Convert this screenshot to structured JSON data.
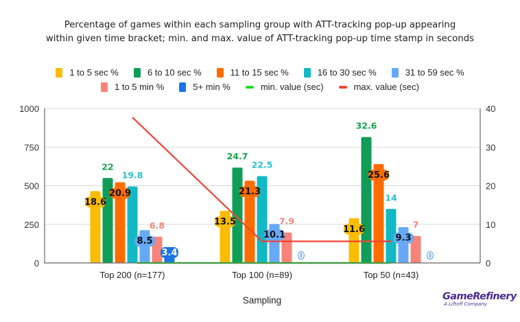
{
  "chart_data": {
    "type": "bar",
    "title_lines": [
      "Percentage of games within each sampling group with ATT-tracking pop-up appearing",
      "within given time bracket; min. and max. value of ATT-tracking pop-up time stamp in seconds"
    ],
    "xlabel": "Sampling",
    "ylabel": "",
    "categories": [
      "Top 200 (n=177)",
      "Top 100 (n=89)",
      "Top 50 (n=43)"
    ],
    "left_axis": {
      "ylim": [
        0,
        1000
      ],
      "ticks": [
        "0",
        "250",
        "500",
        "750",
        "1000"
      ],
      "tick_values": [
        0,
        250,
        500,
        750,
        1000
      ]
    },
    "right_axis": {
      "ylim": [
        0,
        40
      ],
      "ticks": [
        "0",
        "10",
        "20",
        "30",
        "40"
      ],
      "tick_values": [
        0,
        10,
        20,
        30,
        40
      ]
    },
    "bar_scale_note": "bars plotted on left axis at percent x 25",
    "grid": true,
    "legend_position": "top",
    "series": [
      {
        "name": "1 to 5 sec %",
        "color": "#fbbc04",
        "label_color": "#111111",
        "label_style": "inside-badge",
        "values": [
          18.6,
          13.5,
          11.6
        ]
      },
      {
        "name": "6 to 10 sec %",
        "color": "#0f9d58",
        "label_color": "#16a34a",
        "label_style": "above",
        "values": [
          22,
          24.7,
          32.6
        ]
      },
      {
        "name": "11 to 15 sec %",
        "color": "#ff6d01",
        "label_color": "#111111",
        "label_style": "inside-badge",
        "values": [
          20.9,
          21.3,
          25.6
        ]
      },
      {
        "name": "16 to 30 sec %",
        "color": "#12b8c4",
        "label_color": "#2bc0d0",
        "label_style": "above",
        "values": [
          19.8,
          22.5,
          14
        ]
      },
      {
        "name": "31 to 59 sec %",
        "color": "#67a9f7",
        "label_color": "#111111",
        "label_style": "inside-badge",
        "values": [
          8.5,
          10.1,
          9.3
        ]
      },
      {
        "name": "1 to 5 min %",
        "color": "#f7837a",
        "label_color": "#f7837a",
        "label_style": "above",
        "values": [
          6.8,
          7.9,
          7
        ]
      },
      {
        "name": "5+ min %",
        "color": "#1a73e8",
        "label_color": "#ffffff",
        "label_style": "blue-badge",
        "values": [
          3.4,
          0,
          0
        ]
      }
    ],
    "lines": [
      {
        "name": "min. value (sec)",
        "color": "#22dd22",
        "axis": "right",
        "values": [
          0,
          0,
          0
        ]
      },
      {
        "name": "max. value (sec)",
        "color": "#f44336",
        "axis": "right",
        "values": [
          37.7,
          5.6,
          5.6
        ]
      }
    ]
  },
  "branding": {
    "logo_text": "GameRefinery",
    "logo_subtext": "A Liftoff Company"
  }
}
